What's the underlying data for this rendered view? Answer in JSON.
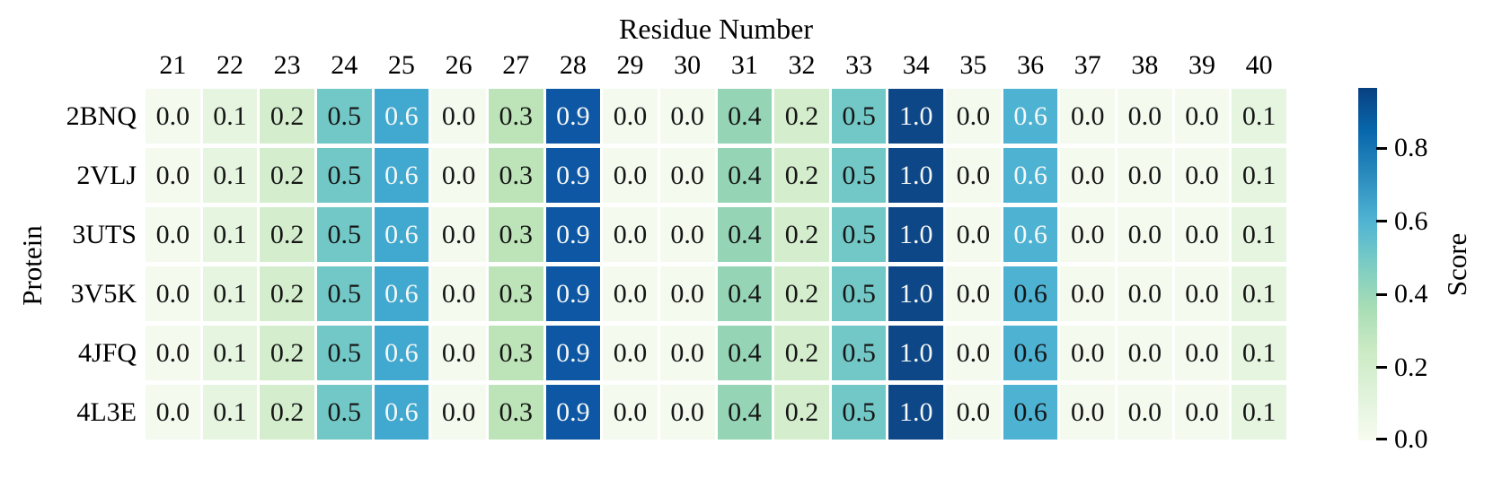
{
  "chart_data": {
    "type": "heatmap",
    "title": "Residue Number",
    "xlabel": "Residue Number",
    "ylabel": "Protein",
    "colormap": "GnBu",
    "grid": false,
    "x_axis_position": "top",
    "columns": [
      "21",
      "22",
      "23",
      "24",
      "25",
      "26",
      "27",
      "28",
      "29",
      "30",
      "31",
      "32",
      "33",
      "34",
      "35",
      "36",
      "37",
      "38",
      "39",
      "40"
    ],
    "rows": [
      "2BNQ",
      "2VLJ",
      "3UTS",
      "3V5K",
      "4JFQ",
      "4L3E"
    ],
    "values": [
      [
        "0.0",
        "0.1",
        "0.2",
        "0.5",
        "0.6",
        "0.0",
        "0.3",
        "0.9",
        "0.0",
        "0.0",
        "0.4",
        "0.2",
        "0.5",
        "1.0",
        "0.0",
        "0.6",
        "0.0",
        "0.0",
        "0.0",
        "0.1"
      ],
      [
        "0.0",
        "0.1",
        "0.2",
        "0.5",
        "0.6",
        "0.0",
        "0.3",
        "0.9",
        "0.0",
        "0.0",
        "0.4",
        "0.2",
        "0.5",
        "1.0",
        "0.0",
        "0.6",
        "0.0",
        "0.0",
        "0.0",
        "0.1"
      ],
      [
        "0.0",
        "0.1",
        "0.2",
        "0.5",
        "0.6",
        "0.0",
        "0.3",
        "0.9",
        "0.0",
        "0.0",
        "0.4",
        "0.2",
        "0.5",
        "1.0",
        "0.0",
        "0.6",
        "0.0",
        "0.0",
        "0.0",
        "0.1"
      ],
      [
        "0.0",
        "0.1",
        "0.2",
        "0.5",
        "0.6",
        "0.0",
        "0.3",
        "0.9",
        "0.0",
        "0.0",
        "0.4",
        "0.2",
        "0.5",
        "1.0",
        "0.0",
        "0.6",
        "0.0",
        "0.0",
        "0.0",
        "0.1"
      ],
      [
        "0.0",
        "0.1",
        "0.2",
        "0.5",
        "0.6",
        "0.0",
        "0.3",
        "0.9",
        "0.0",
        "0.0",
        "0.4",
        "0.2",
        "0.5",
        "1.0",
        "0.0",
        "0.6",
        "0.0",
        "0.0",
        "0.0",
        "0.1"
      ],
      [
        "0.0",
        "0.1",
        "0.2",
        "0.5",
        "0.6",
        "0.0",
        "0.3",
        "0.9",
        "0.0",
        "0.0",
        "0.4",
        "0.2",
        "0.5",
        "1.0",
        "0.0",
        "0.6",
        "0.0",
        "0.0",
        "0.0",
        "0.1"
      ]
    ],
    "value_range": [
      0.0,
      1.0
    ],
    "colorbar": {
      "label": "Score",
      "ticks": [
        "0.8",
        "0.6",
        "0.4",
        "0.2",
        "0.0"
      ]
    }
  },
  "style": {
    "cell_colors": [
      "#f4faee",
      "#e6f5e0",
      "#d4eecd",
      "#72c8c6",
      "#41a8d0",
      "#f4faee",
      "#bce4b8",
      "#0e57a4",
      "#f4faee",
      "#f4faee",
      "#95d5b6",
      "#d4eecd",
      "#72c8c6",
      "#0d4787",
      "#f4faee",
      "#4eb2d3",
      "#f4faee",
      "#f4faee",
      "#f4faee",
      "#e6f5e0"
    ],
    "white_text_columns_all_rows": [
      4,
      7,
      13
    ],
    "white_text_columns_rows_0_1_2": [
      15
    ],
    "dark_text": "#161616",
    "light_text": "#f6f8f6",
    "gradient_stops": [
      "#f7fcf0",
      "#e0f3db",
      "#ccebc5",
      "#a8ddb5",
      "#7bccc4",
      "#4eb3d3",
      "#2b8cbe",
      "#0868ac",
      "#084081"
    ]
  }
}
